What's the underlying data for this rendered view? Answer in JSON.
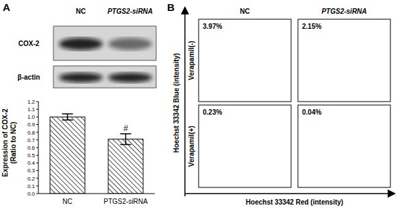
{
  "panel_labels": [
    "A",
    "B"
  ],
  "blot": {
    "columns": [
      "NC",
      "PTGS2-siRNA"
    ],
    "rows": [
      "COX-2",
      "β-actin"
    ]
  },
  "chart_data": {
    "type": "bar",
    "categories": [
      "NC",
      "PTGS2-siRNA"
    ],
    "values": [
      1.0,
      0.71
    ],
    "errors": [
      0.04,
      0.07
    ],
    "color": "#000000",
    "ylabel": "Expression of COX-2\n(Ratio to NC)",
    "ylim": [
      0,
      1.2
    ],
    "yticks": [
      {
        "value": 0,
        "label": "0.0"
      },
      {
        "value": 0.1,
        "label": "0.1"
      },
      {
        "value": 0.2,
        "label": "0.2"
      },
      {
        "value": 0.3,
        "label": "0.3"
      },
      {
        "value": 0.4,
        "label": "0.4"
      },
      {
        "value": 0.5,
        "label": "0.5"
      },
      {
        "value": 0.6,
        "label": "0.6"
      },
      {
        "value": 0.7,
        "label": "0.7"
      },
      {
        "value": 0.8,
        "label": "0.8"
      },
      {
        "value": 0.9,
        "label": "0.9"
      },
      {
        "value": 1.0,
        "label": "1.0"
      },
      {
        "value": 1.1,
        "label": "1.1"
      },
      {
        "value": 1.2,
        "label": "1.2"
      }
    ],
    "annotations": [
      {
        "category": "PTGS2-siRNA",
        "text": "#"
      }
    ]
  },
  "flow": {
    "columns": [
      "NC",
      "PTGS2-siRNA"
    ],
    "rows": [
      "Verapamil(-)",
      "Verapamil(+)"
    ],
    "gate_percentages": [
      [
        "3.97%",
        "2.15%"
      ],
      [
        "0.23%",
        "0.04%"
      ]
    ],
    "xlabel": "Hoechst 33342 Red (intensity)",
    "ylabel": "Hoechst 33342 Blue (intensity)"
  }
}
